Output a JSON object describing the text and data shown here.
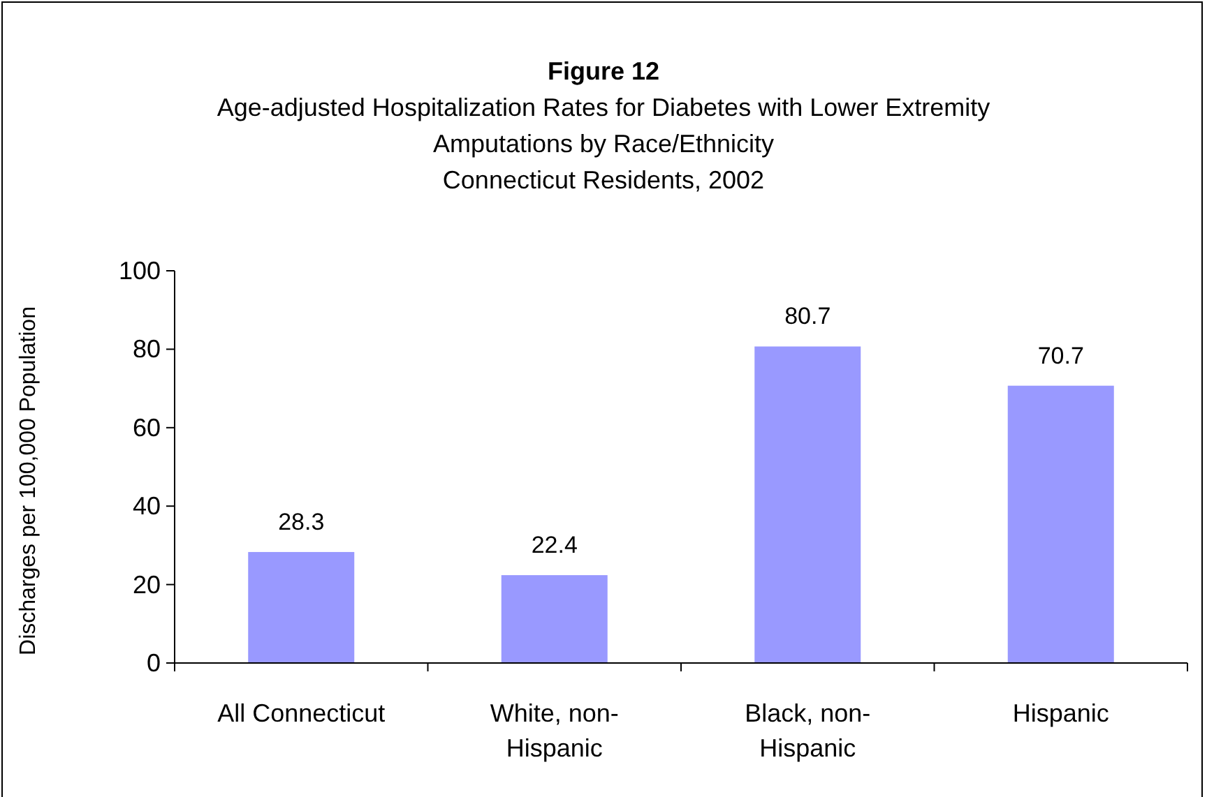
{
  "chart_data": {
    "type": "bar",
    "title": "Figure 12",
    "subtitle": "Age-adjusted Hospitalization Rates for Diabetes with Lower Extremity\nAmputations by Race/Ethnicity\nConnecticut Residents, 2002",
    "ylabel": "Discharges per 100,000 Population",
    "categories": [
      "All Connecticut",
      "White, non-Hispanic",
      "Black, non-Hispanic",
      "Hispanic"
    ],
    "values": [
      28.3,
      22.4,
      80.7,
      70.7
    ],
    "color": "#9999ff",
    "ylim": [
      0,
      100
    ],
    "yticks": [
      0,
      20,
      40,
      60,
      80,
      100
    ],
    "grid": false,
    "data_labels": true
  }
}
